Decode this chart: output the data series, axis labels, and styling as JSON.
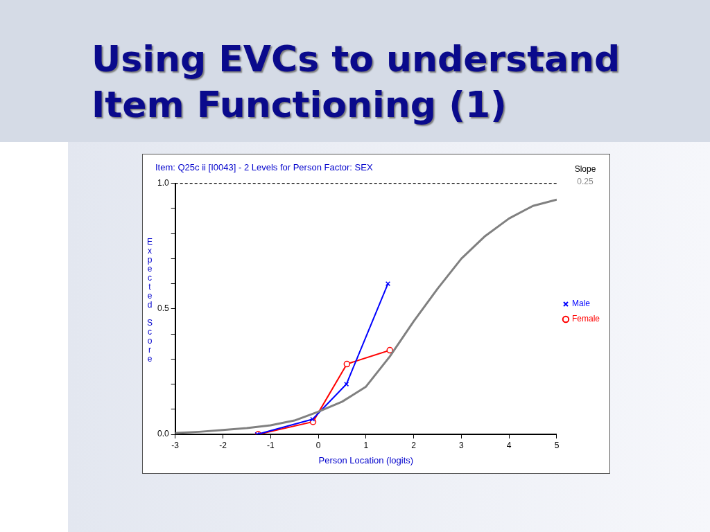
{
  "chart_data": {
    "type": "line",
    "title": "Using EVCs to understand Item Functioning (1)",
    "subtitle": "Item: Q25c ii [I0043] - 2 Levels for Person Factor: SEX",
    "xlabel": "Person Location (logits)",
    "ylabel": "Expected Score",
    "xlim": [
      -3,
      5
    ],
    "xticks": [
      -3,
      -2,
      -1,
      0,
      1,
      2,
      3,
      4,
      5
    ],
    "ylim": [
      0,
      1
    ],
    "yticks": [
      {
        "value": 0,
        "label": "0.0"
      },
      {
        "value": 0.1,
        "label": null
      },
      {
        "value": 0.2,
        "label": null
      },
      {
        "value": 0.3,
        "label": null
      },
      {
        "value": 0.4,
        "label": null
      },
      {
        "value": 0.5,
        "label": "0.5"
      },
      {
        "value": 0.6,
        "label": null
      },
      {
        "value": 0.7,
        "label": null
      },
      {
        "value": 0.8,
        "label": null
      },
      {
        "value": 0.9,
        "label": null
      },
      {
        "value": 1,
        "label": "1.0"
      }
    ],
    "grid": false,
    "legend": "right",
    "ref_lines": [
      {
        "axis": "y",
        "value": 1,
        "line_style": "dashed",
        "color": "#000000"
      }
    ],
    "annotations": [
      "Slope",
      "0.25"
    ],
    "series": [
      {
        "color": "#808080",
        "marker": "none",
        "x": [
          -3,
          -2.5,
          -2,
          -1.5,
          -1,
          -0.5,
          0,
          0.5,
          1,
          1.5,
          2,
          2.5,
          3,
          3.5,
          4,
          4.5,
          5
        ],
        "values": [
          0.005,
          0.01,
          0.017,
          0.025,
          0.036,
          0.055,
          0.09,
          0.13,
          0.19,
          0.31,
          0.45,
          0.58,
          0.7,
          0.79,
          0.86,
          0.91,
          0.935
        ]
      },
      {
        "name": "Male",
        "color": "#0000ff",
        "marker": "cross",
        "x": [
          -1.28,
          -0.12,
          0.59,
          1.46
        ],
        "values": [
          0,
          0.06,
          0.2,
          0.6
        ]
      },
      {
        "name": "Female",
        "color": "#ff0000",
        "marker": "circle",
        "x": [
          -1.26,
          -0.11,
          0.6,
          1.5
        ],
        "values": [
          0,
          0.05,
          0.28,
          0.335
        ]
      }
    ]
  }
}
